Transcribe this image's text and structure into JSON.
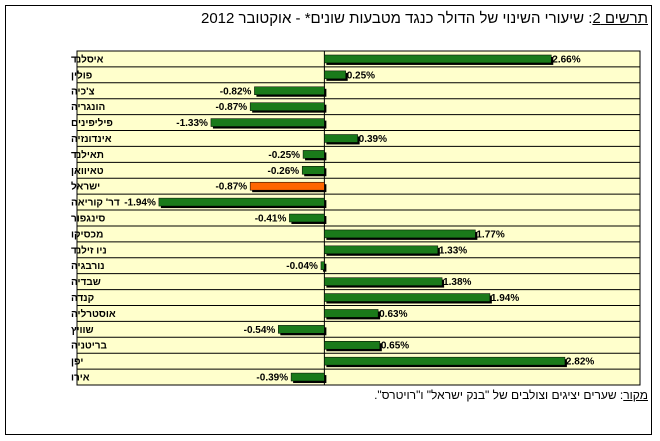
{
  "header": {
    "title_prefix": "תרשים 2",
    "title_rest": ": שיעורי השינוי של הדולר כנגד מטבעות שונים* - אוקטובר 2012"
  },
  "footer": {
    "source_label": "מקור",
    "source_text": ": שערים יציגים וצולבים של \"בנק ישראל\" ו\"רויטרס\"."
  },
  "colors": {
    "plot_bg": "#ffffcc",
    "bar": "#1a7a1a",
    "highlight_bar": "#ff6600",
    "grid": "#000000"
  },
  "chart_data": {
    "type": "bar",
    "orientation": "horizontal",
    "categories": [
      "איסלנד",
      "פולין",
      "צ'כיה",
      "הונגריה",
      "פיליפינים",
      "אינדונזיה",
      "תאילנד",
      "טאיוואן",
      "ישראל",
      "דר' קוריאה",
      "סינגפור",
      "מכסיקו",
      "ניו זילנד",
      "נורבגיה",
      "שבדיה",
      "קנדה",
      "אוסטרליה",
      "שוויץ",
      "בריטניה",
      "יפן",
      "אירו"
    ],
    "values": [
      2.66,
      0.25,
      -0.82,
      -0.87,
      -1.33,
      0.39,
      -0.25,
      -0.26,
      -0.87,
      -1.94,
      -0.41,
      1.77,
      1.33,
      -0.04,
      1.38,
      1.94,
      0.63,
      -0.54,
      0.65,
      2.82,
      -0.39
    ],
    "labels": [
      "2.66%",
      "0.25%",
      "-0.82%",
      "-0.87%",
      "-1.33%",
      "0.39%",
      "-0.25%",
      "-0.26%",
      "-0.87%",
      "-1.94%",
      "-0.41%",
      "1.77%",
      "1.33%",
      "-0.04%",
      "1.38%",
      "1.94%",
      "0.63%",
      "-0.54%",
      "0.65%",
      "2.82%",
      "-0.39%"
    ],
    "highlight": "ישראל",
    "xlim": [
      -2.9,
      3.7
    ],
    "grid": "horizontal row lines",
    "legend": "none"
  }
}
